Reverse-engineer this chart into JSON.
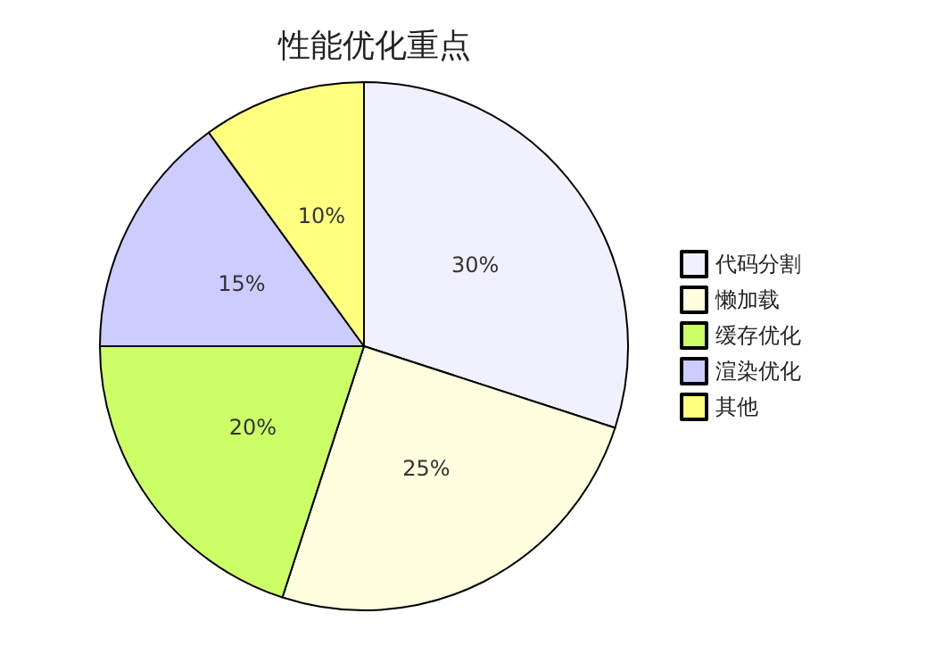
{
  "chart_data": {
    "type": "pie",
    "title": "性能优化重点",
    "categories": [
      "代码分割",
      "懒加载",
      "缓存优化",
      "渲染优化",
      "其他"
    ],
    "values": [
      30,
      25,
      20,
      15,
      10
    ],
    "value_labels": [
      "30%",
      "25%",
      "20%",
      "15%",
      "10%"
    ],
    "colors": [
      "#f0f0ff",
      "#ffffe0",
      "#ccff66",
      "#ccccff",
      "#ffff80"
    ],
    "legend": "right"
  }
}
